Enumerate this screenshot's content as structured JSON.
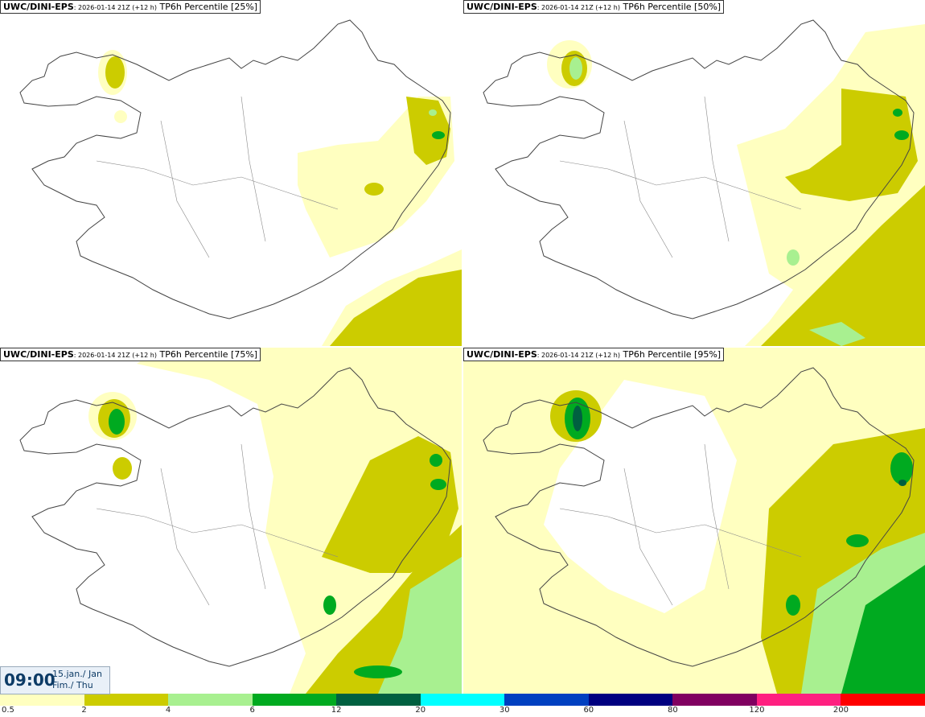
{
  "panels": [
    {
      "model": "UWC/DINI-EPS",
      "run": ": 2026-01-14 21Z (+12 h)",
      "product": "TP6h Percentile [25%]"
    },
    {
      "model": "UWC/DINI-EPS",
      "run": ": 2026-01-14 21Z (+12 h)",
      "product": "TP6h Percentile [50%]"
    },
    {
      "model": "UWC/DINI-EPS",
      "run": ": 2026-01-14 21Z (+12 h)",
      "product": "TP6h Percentile [75%]"
    },
    {
      "model": "UWC/DINI-EPS",
      "run": ": 2026-01-14 21Z (+12 h)",
      "product": "TP6h Percentile [95%]"
    }
  ],
  "valid_time": {
    "time": "09:00",
    "date_line": "15.jan./ Jan",
    "day_line": "Fim./ Thu"
  },
  "legend": {
    "colors": [
      "#ffffc0",
      "#cccc00",
      "#a8f090",
      "#00aa20",
      "#006040",
      "#00ffff",
      "#0040c0",
      "#000080",
      "#800060",
      "#ff2080",
      "#ff0000"
    ],
    "labels": [
      "0.5",
      "2",
      "4",
      "6",
      "12",
      "20",
      "30",
      "60",
      "80",
      "120",
      "200"
    ]
  },
  "map_icons": [
    "coastline-outline",
    "precipitation-field"
  ]
}
